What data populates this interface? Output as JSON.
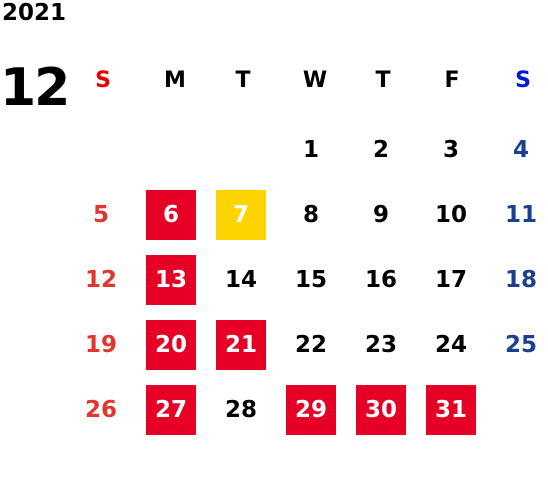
{
  "year": "2021",
  "month": "12",
  "colors": {
    "sunday": "#e1352e",
    "saturday": "#1b3f91",
    "holiday_bg": "#e60026",
    "today_bg": "#fdd400",
    "weekday_header_sunday": "#e60000",
    "weekday_header_saturday": "#0018d8"
  },
  "weekdays": [
    "S",
    "M",
    "T",
    "W",
    "T",
    "F",
    "S"
  ],
  "weeks": [
    [
      null,
      null,
      null,
      {
        "day": "1"
      },
      {
        "day": "2"
      },
      {
        "day": "3"
      },
      {
        "day": "4"
      }
    ],
    [
      {
        "day": "5"
      },
      {
        "day": "6",
        "status": "holiday"
      },
      {
        "day": "7",
        "status": "today"
      },
      {
        "day": "8"
      },
      {
        "day": "9"
      },
      {
        "day": "10"
      },
      {
        "day": "11"
      }
    ],
    [
      {
        "day": "12"
      },
      {
        "day": "13",
        "status": "holiday"
      },
      {
        "day": "14"
      },
      {
        "day": "15"
      },
      {
        "day": "16"
      },
      {
        "day": "17"
      },
      {
        "day": "18"
      }
    ],
    [
      {
        "day": "19"
      },
      {
        "day": "20",
        "status": "holiday"
      },
      {
        "day": "21",
        "status": "holiday"
      },
      {
        "day": "22"
      },
      {
        "day": "23"
      },
      {
        "day": "24"
      },
      {
        "day": "25"
      }
    ],
    [
      {
        "day": "26"
      },
      {
        "day": "27",
        "status": "holiday"
      },
      {
        "day": "28"
      },
      {
        "day": "29",
        "status": "holiday"
      },
      {
        "day": "30",
        "status": "holiday"
      },
      {
        "day": "31",
        "status": "holiday"
      },
      null
    ]
  ]
}
